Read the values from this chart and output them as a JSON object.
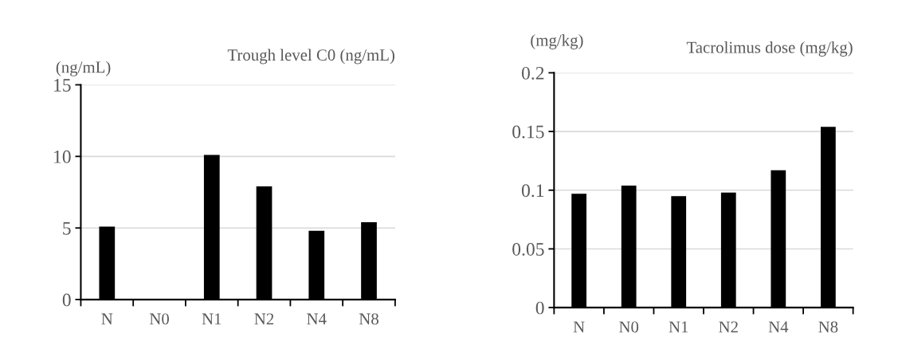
{
  "chart_data": [
    {
      "type": "bar",
      "title": "Trough level C0 (ng/mL)",
      "ylabel": "(ng/mL)",
      "categories": [
        "N",
        "N0",
        "N1",
        "N2",
        "N4",
        "N8"
      ],
      "values": [
        5.1,
        null,
        10.1,
        7.9,
        4.8,
        5.4
      ],
      "color": "#000000",
      "ylim": [
        0,
        15
      ],
      "yticks": [
        0,
        5,
        10,
        15
      ],
      "grid": "y"
    },
    {
      "type": "bar",
      "title": "Tacrolimus dose (mg/kg)",
      "ylabel": "(mg/kg)",
      "categories": [
        "N",
        "N0",
        "N1",
        "N2",
        "N4",
        "N8"
      ],
      "values": [
        0.097,
        0.104,
        0.095,
        0.098,
        0.117,
        0.154
      ],
      "color": "#000000",
      "ylim": [
        0,
        0.2
      ],
      "yticks": [
        0,
        0.05,
        0.1,
        0.15,
        0.2
      ],
      "grid": "y"
    }
  ]
}
